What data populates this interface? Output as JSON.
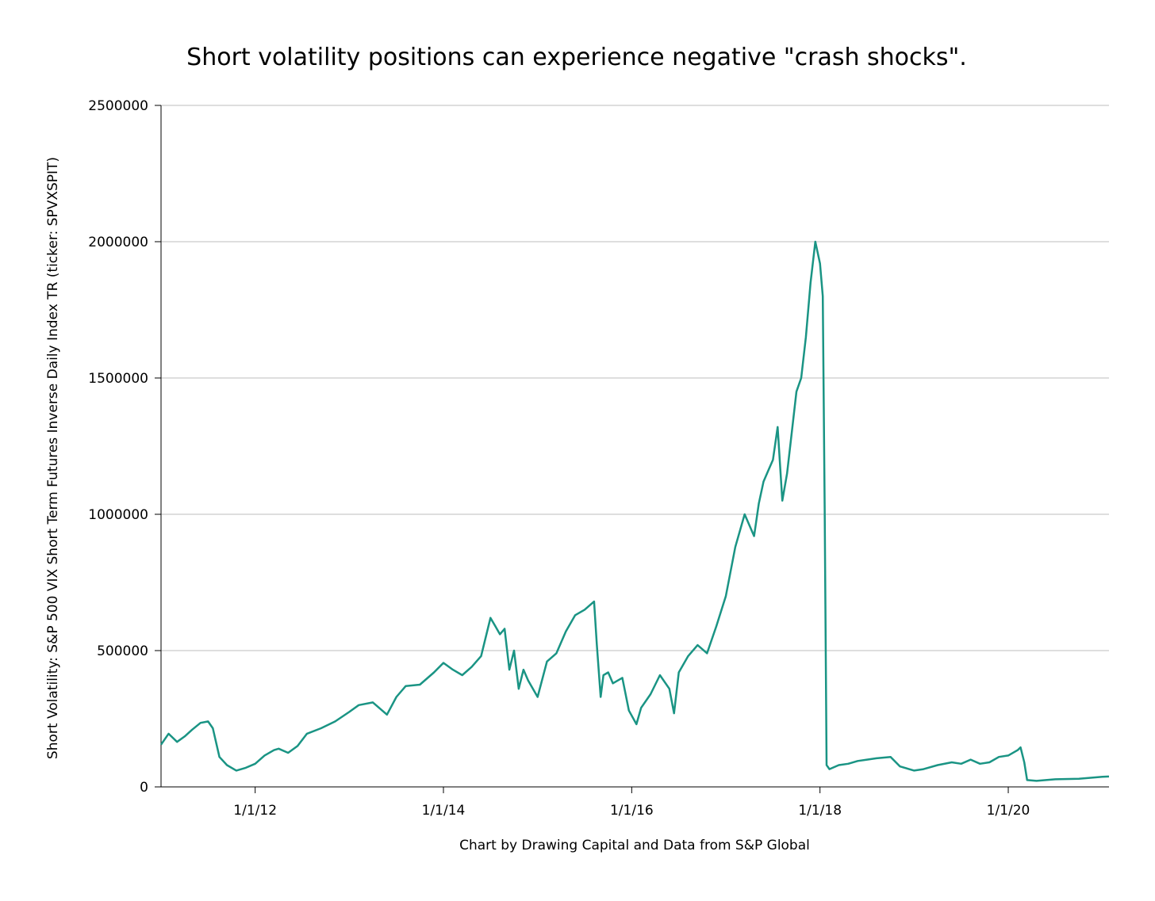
{
  "chart_data": {
    "type": "line",
    "title": "Short volatility positions can experience negative \"crash shocks\".",
    "xlabel": "Chart by Drawing Capital and Data from S&P Global",
    "ylabel": "Short Volatility: S&P 500 VIX Short Term Futures Inverse Daily Index TR (ticker: SPVXSPIT)",
    "ylim": [
      0,
      2500000
    ],
    "xlim": [
      2011.0,
      2021.07
    ],
    "grid": true,
    "legend": "none",
    "colors": {
      "line": "#1a9484",
      "grid": "#bdbdbd",
      "axis": "#000000"
    },
    "y_ticks": [
      {
        "value": 0,
        "label": "0"
      },
      {
        "value": 500000,
        "label": "500000"
      },
      {
        "value": 1000000,
        "label": "1000000"
      },
      {
        "value": 1500000,
        "label": "1500000"
      },
      {
        "value": 2000000,
        "label": "2000000"
      },
      {
        "value": 2500000,
        "label": "2500000"
      }
    ],
    "x_ticks": [
      {
        "value": 2012.0,
        "label": "1/1/12"
      },
      {
        "value": 2014.0,
        "label": "1/1/14"
      },
      {
        "value": 2016.0,
        "label": "1/1/16"
      },
      {
        "value": 2018.0,
        "label": "1/1/18"
      },
      {
        "value": 2020.0,
        "label": "1/1/20"
      }
    ],
    "series": [
      {
        "name": "SPVXSPIT",
        "x": [
          2011.0,
          2011.08,
          2011.17,
          2011.25,
          2011.33,
          2011.42,
          2011.5,
          2011.55,
          2011.62,
          2011.7,
          2011.8,
          2011.9,
          2012.0,
          2012.1,
          2012.2,
          2012.25,
          2012.35,
          2012.45,
          2012.55,
          2012.7,
          2012.85,
          2013.0,
          2013.1,
          2013.25,
          2013.4,
          2013.5,
          2013.6,
          2013.75,
          2013.9,
          2014.0,
          2014.1,
          2014.2,
          2014.3,
          2014.4,
          2014.5,
          2014.55,
          2014.6,
          2014.65,
          2014.7,
          2014.75,
          2014.8,
          2014.85,
          2014.9,
          2015.0,
          2015.1,
          2015.2,
          2015.3,
          2015.4,
          2015.5,
          2015.6,
          2015.63,
          2015.67,
          2015.7,
          2015.75,
          2015.8,
          2015.9,
          2015.97,
          2016.05,
          2016.1,
          2016.2,
          2016.3,
          2016.4,
          2016.45,
          2016.5,
          2016.6,
          2016.7,
          2016.8,
          2016.9,
          2017.0,
          2017.1,
          2017.2,
          2017.3,
          2017.35,
          2017.4,
          2017.45,
          2017.5,
          2017.55,
          2017.6,
          2017.65,
          2017.7,
          2017.75,
          2017.8,
          2017.85,
          2017.9,
          2017.95,
          2018.0,
          2018.03,
          2018.05,
          2018.07,
          2018.09,
          2018.1,
          2018.2,
          2018.3,
          2018.4,
          2018.5,
          2018.6,
          2018.75,
          2018.85,
          2019.0,
          2019.1,
          2019.25,
          2019.4,
          2019.5,
          2019.6,
          2019.7,
          2019.8,
          2019.9,
          2020.0,
          2020.1,
          2020.13,
          2020.17,
          2020.2,
          2020.3,
          2020.5,
          2020.75,
          2021.0,
          2021.07
        ],
        "values": [
          155000,
          195000,
          165000,
          185000,
          210000,
          235000,
          240000,
          215000,
          110000,
          80000,
          60000,
          70000,
          85000,
          115000,
          135000,
          140000,
          125000,
          150000,
          195000,
          215000,
          240000,
          275000,
          300000,
          310000,
          265000,
          330000,
          370000,
          375000,
          420000,
          455000,
          430000,
          410000,
          440000,
          480000,
          620000,
          590000,
          560000,
          580000,
          430000,
          500000,
          360000,
          430000,
          390000,
          330000,
          460000,
          490000,
          570000,
          630000,
          650000,
          680000,
          520000,
          330000,
          410000,
          420000,
          380000,
          400000,
          280000,
          230000,
          290000,
          340000,
          410000,
          360000,
          270000,
          420000,
          480000,
          520000,
          490000,
          590000,
          700000,
          880000,
          1000000,
          920000,
          1040000,
          1120000,
          1160000,
          1200000,
          1320000,
          1050000,
          1150000,
          1300000,
          1450000,
          1500000,
          1650000,
          1850000,
          2000000,
          1920000,
          1800000,
          1020000,
          80000,
          70000,
          65000,
          80000,
          85000,
          95000,
          100000,
          105000,
          110000,
          75000,
          60000,
          65000,
          80000,
          90000,
          85000,
          100000,
          85000,
          90000,
          110000,
          115000,
          135000,
          145000,
          90000,
          25000,
          22000,
          28000,
          30000,
          37000,
          38000
        ]
      }
    ]
  }
}
